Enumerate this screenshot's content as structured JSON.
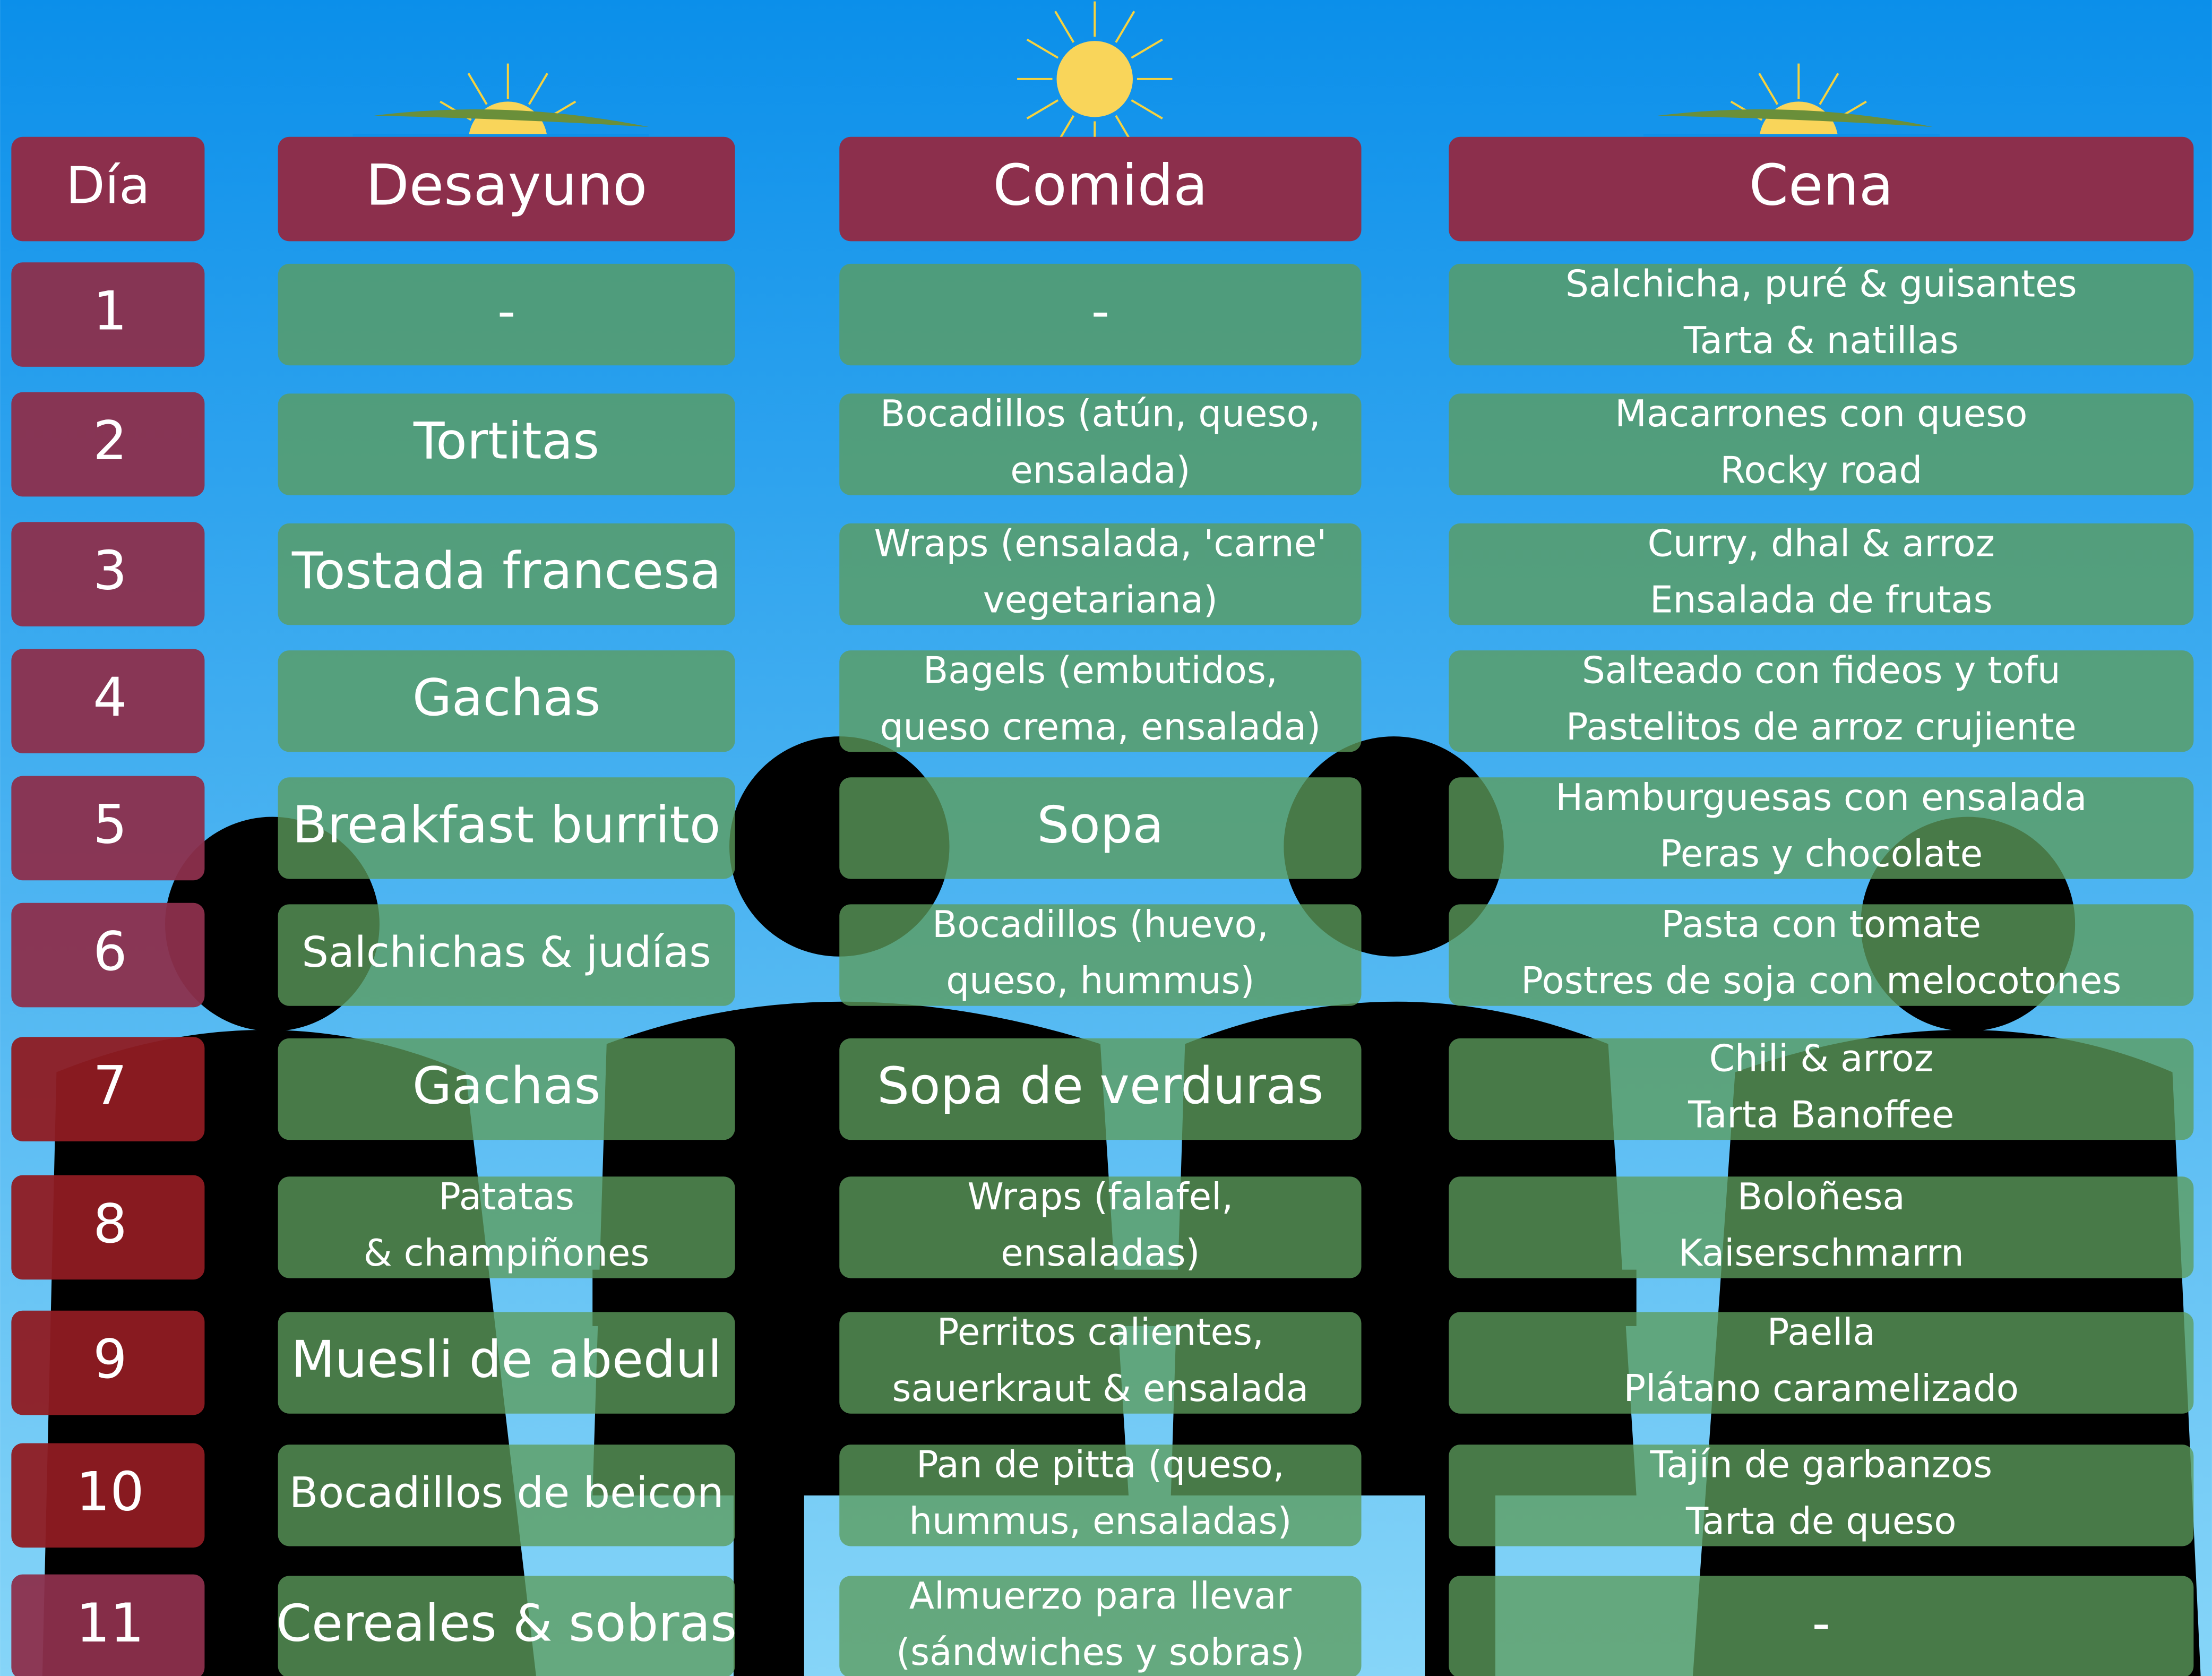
{
  "header": {
    "columns": [
      "Día",
      "Desayuno",
      "Comida",
      "Cena"
    ]
  },
  "rows": [
    {
      "day": "1",
      "desayuno": [
        "-"
      ],
      "comida": [
        "-"
      ],
      "cena": [
        "Salchicha, puré & guisantes",
        "Tarta & natillas"
      ]
    },
    {
      "day": "2",
      "desayuno": [
        "Tortitas"
      ],
      "comida": [
        "Bocadillos (atún, queso,",
        "ensalada)"
      ],
      "cena": [
        "Macarrones con queso",
        "Rocky road"
      ]
    },
    {
      "day": "3",
      "desayuno": [
        "Tostada francesa"
      ],
      "comida": [
        "Wraps (ensalada, 'carne'",
        "vegetariana)"
      ],
      "cena": [
        "Curry, dhal & arroz",
        "Ensalada de frutas"
      ]
    },
    {
      "day": "4",
      "desayuno": [
        "Gachas"
      ],
      "comida": [
        "Bagels (embutidos,",
        "queso crema, ensalada)"
      ],
      "cena": [
        "Salteado con fideos y tofu",
        "Pastelitos de arroz crujiente"
      ]
    },
    {
      "day": "5",
      "desayuno": [
        "Breakfast burrito"
      ],
      "comida": [
        "Sopa"
      ],
      "cena": [
        "Hamburguesas con ensalada",
        "Peras y chocolate"
      ]
    },
    {
      "day": "6",
      "desayuno": [
        "Salchichas & judías"
      ],
      "comida": [
        "Bocadillos (huevo,",
        "queso, hummus)"
      ],
      "cena": [
        "Pasta con tomate",
        "Postres de soja con melocotones"
      ]
    },
    {
      "day": "7",
      "desayuno": [
        "Gachas"
      ],
      "comida": [
        "Sopa de verduras"
      ],
      "cena": [
        "Chili & arroz",
        "Tarta Banoffee"
      ]
    },
    {
      "day": "8",
      "desayuno": [
        "Patatas",
        "& champiñones"
      ],
      "comida": [
        "Wraps  (falafel,",
        "ensaladas)"
      ],
      "cena": [
        "Boloñesa",
        "Kaiserschmarrn"
      ]
    },
    {
      "day": "9",
      "desayuno": [
        "Muesli de abedul"
      ],
      "comida": [
        "Perritos calientes,",
        "sauerkraut & ensalada"
      ],
      "cena": [
        "Paella",
        "Plátano caramelizado"
      ]
    },
    {
      "day": "10",
      "desayuno": [
        "Bocadillos de beicon"
      ],
      "comida": [
        "Pan de pitta (queso,",
        "hummus, ensaladas)"
      ],
      "cena": [
        "Tajín de garbanzos",
        "Tarta de queso"
      ]
    },
    {
      "day": "11",
      "desayuno": [
        "Cereales & sobras"
      ],
      "comida": [
        "Almuerzo para llevar",
        "(sándwiches y sobras)"
      ],
      "cena": [
        "-"
      ]
    }
  ]
}
